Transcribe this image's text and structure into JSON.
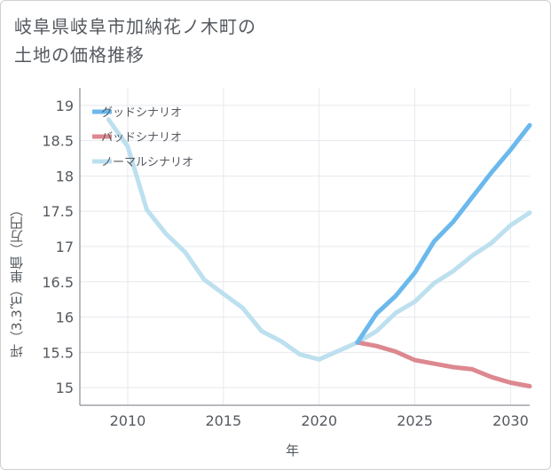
{
  "title": {
    "line1": "岐阜県岐阜市加納花ノ木町の",
    "line2": "土地の価格推移"
  },
  "colors": {
    "good": "#6bb9ec",
    "bad": "#dd8890",
    "normal": "#bde0ef",
    "grid": "#e6e9ee",
    "axis": "#6f7780",
    "text": "#555a60"
  },
  "chart_data": {
    "type": "line",
    "title": "岐阜県岐阜市加納花ノ木町の土地の価格推移",
    "xlabel": "年",
    "ylabel": "坪（3.3㎡）単価（万円）",
    "xlim": [
      2007.5,
      2031
    ],
    "ylim": [
      14.75,
      19.25
    ],
    "xticks": [
      2010,
      2015,
      2020,
      2025,
      2030
    ],
    "yticks": [
      15,
      15.5,
      16,
      16.5,
      17,
      17.5,
      18,
      18.5,
      19
    ],
    "grid": true,
    "legend_position": "top-left",
    "series": [
      {
        "name": "グッドシナリオ",
        "color": "#6bb9ec",
        "x": [
          2022,
          2023,
          2024,
          2025,
          2026,
          2027,
          2028,
          2029,
          2030,
          2031
        ],
        "y": [
          15.64,
          16.05,
          16.3,
          16.63,
          17.07,
          17.35,
          17.7,
          18.05,
          18.37,
          18.72
        ]
      },
      {
        "name": "バッドシナリオ",
        "color": "#dd8890",
        "x": [
          2022,
          2023,
          2024,
          2025,
          2026,
          2027,
          2028,
          2029,
          2030,
          2031
        ],
        "y": [
          15.64,
          15.59,
          15.51,
          15.39,
          15.34,
          15.29,
          15.26,
          15.15,
          15.07,
          15.02
        ]
      },
      {
        "name": "ノーマルシナリオ",
        "color": "#bde0ef",
        "x": [
          2009,
          2010,
          2011,
          2012,
          2013,
          2014,
          2015,
          2016,
          2017,
          2018,
          2019,
          2020,
          2021,
          2022,
          2023,
          2024,
          2025,
          2026,
          2027,
          2028,
          2029,
          2030,
          2031
        ],
        "y": [
          18.8,
          18.42,
          17.52,
          17.18,
          16.92,
          16.53,
          16.33,
          16.13,
          15.8,
          15.66,
          15.47,
          15.4,
          15.52,
          15.64,
          15.8,
          16.06,
          16.22,
          16.48,
          16.65,
          16.87,
          17.05,
          17.3,
          17.48
        ]
      }
    ]
  }
}
